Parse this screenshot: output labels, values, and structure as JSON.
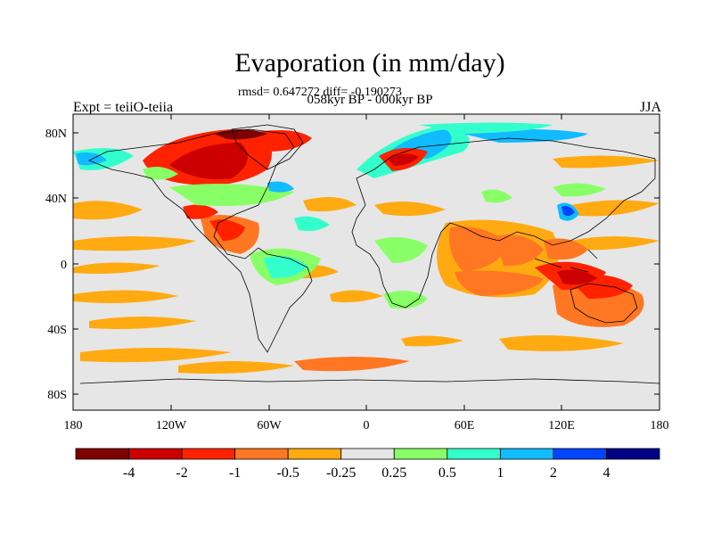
{
  "header": {
    "title": "Evaporation (in mm/day)",
    "stats": "rmsd= 0.647272 diff= -0.190273",
    "period": "058kyr BP - 000kyr BP",
    "experiment": "Expt = teiiO-teiia",
    "season": "JJA"
  },
  "map": {
    "projection": "cylindrical equidistant",
    "lat_ticks": [
      "80N",
      "40N",
      "0",
      "40S",
      "80S"
    ],
    "lon_ticks": [
      "180",
      "120W",
      "60W",
      "0",
      "60E",
      "120E",
      "180"
    ],
    "background_color": "#e6e6e6"
  },
  "colorbar": {
    "labels": [
      "-4",
      "-2",
      "-1",
      "-0.5",
      "-0.25",
      "0.25",
      "0.5",
      "1",
      "2",
      "4"
    ],
    "colors": [
      "#7f0000",
      "#cc0000",
      "#ff2200",
      "#ff7722",
      "#ffaa11",
      "#e6e6e6",
      "#88ff66",
      "#33ffcc",
      "#11bbff",
      "#0044ff",
      "#000088"
    ]
  }
}
